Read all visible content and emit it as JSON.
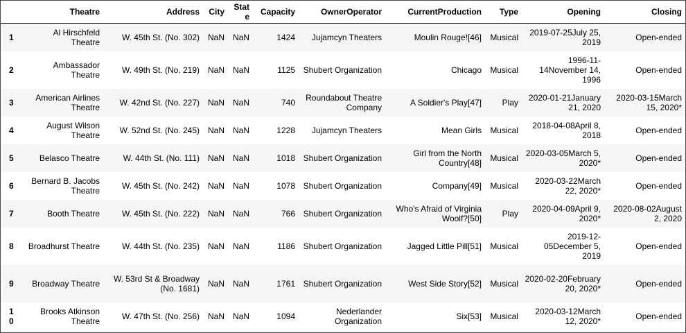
{
  "table": {
    "columns": [
      "",
      "Theatre",
      "Address",
      "City",
      "State",
      "Capacity",
      "OwnerOperator",
      "CurrentProduction",
      "Type",
      "Opening",
      "Closing"
    ],
    "rows": [
      {
        "index": "1",
        "theatre": "Al Hirschfeld Theatre",
        "address": "W. 45th St. (No. 302)",
        "city": "NaN",
        "state": "NaN",
        "capacity": "1424",
        "owner": "Jujamcyn Theaters",
        "production": "Moulin Rouge![46]",
        "type": "Musical",
        "opening": "2019-07-25July 25, 2019",
        "closing": "Open-ended"
      },
      {
        "index": "2",
        "theatre": "Ambassador Theatre",
        "address": "W. 49th St. (No. 219)",
        "city": "NaN",
        "state": "NaN",
        "capacity": "1125",
        "owner": "Shubert Organization",
        "production": "Chicago",
        "type": "Musical",
        "opening": "1996-11-14November 14, 1996",
        "closing": "Open-ended"
      },
      {
        "index": "3",
        "theatre": "American Airlines Theatre",
        "address": "W. 42nd St. (No. 227)",
        "city": "NaN",
        "state": "NaN",
        "capacity": "740",
        "owner": "Roundabout Theatre Company",
        "production": "A Soldier's Play[47]",
        "type": "Play",
        "opening": "2020-01-21January 21, 2020",
        "closing": "2020-03-15March 15, 2020*"
      },
      {
        "index": "4",
        "theatre": "August Wilson Theatre",
        "address": "W. 52nd St. (No. 245)",
        "city": "NaN",
        "state": "NaN",
        "capacity": "1228",
        "owner": "Jujamcyn Theaters",
        "production": "Mean Girls",
        "type": "Musical",
        "opening": "2018-04-08April 8, 2018",
        "closing": "Open-ended"
      },
      {
        "index": "5",
        "theatre": "Belasco Theatre",
        "address": "W. 44th St. (No. 111)",
        "city": "NaN",
        "state": "NaN",
        "capacity": "1018",
        "owner": "Shubert Organization",
        "production": "Girl from the North Country[48]",
        "type": "Musical",
        "opening": "2020-03-05March 5, 2020*",
        "closing": "Open-ended"
      },
      {
        "index": "6",
        "theatre": "Bernard B. Jacobs Theatre",
        "address": "W. 45th St. (No. 242)",
        "city": "NaN",
        "state": "NaN",
        "capacity": "1078",
        "owner": "Shubert Organization",
        "production": "Company[49]",
        "type": "Musical",
        "opening": "2020-03-22March 22, 2020*",
        "closing": "Open-ended"
      },
      {
        "index": "7",
        "theatre": "Booth Theatre",
        "address": "W. 45th St. (No. 222)",
        "city": "NaN",
        "state": "NaN",
        "capacity": "766",
        "owner": "Shubert Organization",
        "production": "Who's Afraid of Virginia Woolf?[50]",
        "type": "Play",
        "opening": "2020-04-09April 9, 2020*",
        "closing": "2020-08-02August 2, 2020"
      },
      {
        "index": "8",
        "theatre": "Broadhurst Theatre",
        "address": "W. 44th St. (No. 235)",
        "city": "NaN",
        "state": "NaN",
        "capacity": "1186",
        "owner": "Shubert Organization",
        "production": "Jagged Little Pill[51]",
        "type": "Musical",
        "opening": "2019-12-05December 5, 2019",
        "closing": "Open-ended"
      },
      {
        "index": "9",
        "theatre": "Broadway Theatre",
        "address": "W. 53rd St & Broadway (No. 1681)",
        "city": "NaN",
        "state": "NaN",
        "capacity": "1761",
        "owner": "Shubert Organization",
        "production": "West Side Story[52]",
        "type": "Musical",
        "opening": "2020-02-20February 20, 2020*",
        "closing": "Open-ended"
      },
      {
        "index": "10",
        "theatre": "Brooks Atkinson Theatre",
        "address": "W. 47th St. (No. 256)",
        "city": "NaN",
        "state": "NaN",
        "capacity": "1094",
        "owner": "Nederlander Organization",
        "production": "Six[53]",
        "type": "Musical",
        "opening": "2020-03-12March 12, 2020*",
        "closing": "Open-ended"
      }
    ]
  }
}
